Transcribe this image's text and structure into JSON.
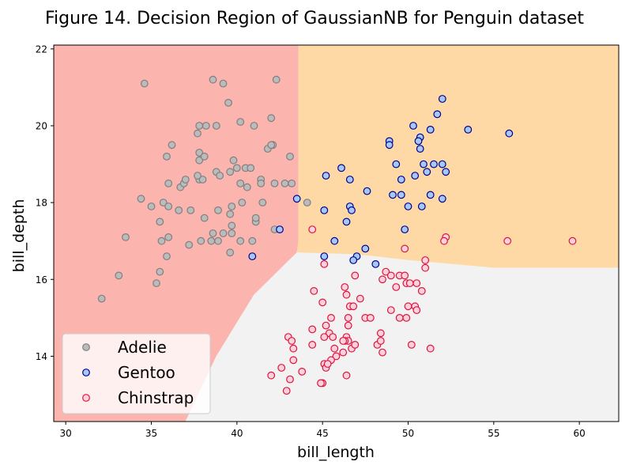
{
  "chart_data": {
    "type": "scatter",
    "title": "Figure 14. Decision Region of GaussianNB for Penguin dataset",
    "xlabel": "bill_length",
    "ylabel": "bill_depth",
    "xlim": [
      29.3,
      62.3
    ],
    "ylim": [
      12.3,
      22.1
    ],
    "xticks": [
      "30",
      "35",
      "40",
      "45",
      "50",
      "55",
      "60"
    ],
    "yticks": [
      "14",
      "16",
      "18",
      "20",
      "22"
    ],
    "legend_position": "lower-left",
    "region_colors": {
      "Adelie": "#fbb4ae",
      "Gentoo": "#fed9a6",
      "Chinstrap": "#f2f2f2"
    },
    "regions": [
      {
        "name": "Adelie",
        "polygon": [
          [
            29.3,
            12.3
          ],
          [
            29.3,
            22.1
          ],
          [
            43.6,
            22.1
          ],
          [
            43.6,
            17.0
          ],
          [
            43.5,
            16.7
          ],
          [
            41.0,
            15.6
          ],
          [
            38.8,
            14.0
          ],
          [
            37.0,
            12.3
          ]
        ]
      },
      {
        "name": "Gentoo",
        "polygon": [
          [
            43.6,
            22.1
          ],
          [
            62.3,
            22.1
          ],
          [
            62.3,
            16.3
          ],
          [
            55.0,
            16.3
          ],
          [
            50.0,
            16.5
          ],
          [
            47.0,
            16.65
          ],
          [
            43.5,
            16.7
          ],
          [
            43.6,
            17.0
          ]
        ]
      },
      {
        "name": "Chinstrap",
        "polygon": [
          [
            37.0,
            12.3
          ],
          [
            38.8,
            14.0
          ],
          [
            41.0,
            15.6
          ],
          [
            43.5,
            16.7
          ],
          [
            47.0,
            16.65
          ],
          [
            50.0,
            16.5
          ],
          [
            55.0,
            16.3
          ],
          [
            62.3,
            16.3
          ],
          [
            62.3,
            12.3
          ]
        ]
      }
    ],
    "series": [
      {
        "name": "Adelie",
        "fill": "#bbbbbb",
        "edge": "#7f7f7f",
        "points": [
          [
            34.6,
            21.1
          ],
          [
            38.6,
            21.2
          ],
          [
            39.2,
            21.1
          ],
          [
            42.3,
            21.2
          ],
          [
            39.5,
            20.6
          ],
          [
            36.2,
            19.5
          ],
          [
            37.8,
            20.0
          ],
          [
            38.2,
            20.0
          ],
          [
            38.8,
            20.0
          ],
          [
            40.2,
            20.1
          ],
          [
            41.0,
            20.0
          ],
          [
            42.0,
            20.2
          ],
          [
            37.7,
            19.8
          ],
          [
            35.9,
            19.2
          ],
          [
            37.8,
            19.3
          ],
          [
            37.8,
            19.1
          ],
          [
            38.1,
            19.2
          ],
          [
            39.8,
            19.1
          ],
          [
            41.8,
            19.4
          ],
          [
            42.1,
            19.5
          ],
          [
            42.0,
            19.5
          ],
          [
            43.1,
            19.2
          ],
          [
            36.0,
            18.5
          ],
          [
            36.7,
            18.4
          ],
          [
            36.9,
            18.5
          ],
          [
            37.0,
            18.6
          ],
          [
            37.8,
            18.6
          ],
          [
            38.0,
            18.6
          ],
          [
            38.8,
            18.8
          ],
          [
            39.0,
            18.7
          ],
          [
            39.6,
            18.8
          ],
          [
            40.0,
            18.9
          ],
          [
            40.5,
            18.9
          ],
          [
            40.8,
            18.9
          ],
          [
            41.4,
            18.6
          ],
          [
            41.4,
            18.5
          ],
          [
            42.2,
            18.5
          ],
          [
            42.8,
            18.5
          ],
          [
            43.2,
            18.5
          ],
          [
            37.7,
            18.7
          ],
          [
            40.2,
            18.5
          ],
          [
            40.6,
            18.4
          ],
          [
            34.4,
            18.1
          ],
          [
            35.0,
            17.9
          ],
          [
            35.7,
            18.0
          ],
          [
            36.0,
            17.9
          ],
          [
            36.6,
            17.8
          ],
          [
            37.3,
            17.8
          ],
          [
            38.1,
            17.6
          ],
          [
            38.9,
            17.8
          ],
          [
            39.6,
            17.7
          ],
          [
            39.7,
            17.9
          ],
          [
            40.3,
            18.0
          ],
          [
            41.1,
            17.5
          ],
          [
            41.1,
            17.6
          ],
          [
            41.5,
            18.0
          ],
          [
            44.1,
            18.0
          ],
          [
            35.5,
            17.5
          ],
          [
            38.6,
            17.2
          ],
          [
            38.9,
            17.0
          ],
          [
            39.2,
            17.2
          ],
          [
            39.7,
            17.2
          ],
          [
            40.9,
            17.0
          ],
          [
            42.2,
            17.3
          ],
          [
            38.5,
            17.0
          ],
          [
            33.5,
            17.1
          ],
          [
            35.6,
            17.0
          ],
          [
            36.0,
            17.1
          ],
          [
            37.2,
            16.9
          ],
          [
            37.9,
            17.0
          ],
          [
            40.2,
            17.0
          ],
          [
            35.9,
            16.6
          ],
          [
            39.6,
            16.7
          ],
          [
            35.5,
            16.2
          ],
          [
            33.1,
            16.1
          ],
          [
            35.3,
            15.9
          ],
          [
            32.1,
            15.5
          ],
          [
            39.7,
            17.4
          ]
        ]
      },
      {
        "name": "Gentoo",
        "fill": "#a6c8ff",
        "edge": "#00008b",
        "points": [
          [
            52.0,
            20.7
          ],
          [
            51.7,
            20.3
          ],
          [
            50.3,
            20.0
          ],
          [
            51.3,
            19.9
          ],
          [
            53.5,
            19.9
          ],
          [
            55.9,
            19.8
          ],
          [
            50.7,
            19.7
          ],
          [
            48.9,
            19.6
          ],
          [
            48.9,
            19.5
          ],
          [
            50.6,
            19.6
          ],
          [
            50.7,
            19.4
          ],
          [
            45.2,
            18.7
          ],
          [
            46.1,
            18.9
          ],
          [
            46.6,
            18.6
          ],
          [
            49.6,
            18.6
          ],
          [
            50.4,
            18.7
          ],
          [
            51.1,
            18.8
          ],
          [
            51.5,
            19.0
          ],
          [
            52.0,
            19.0
          ],
          [
            52.2,
            18.8
          ],
          [
            50.9,
            19.0
          ],
          [
            49.3,
            19.0
          ],
          [
            47.6,
            18.3
          ],
          [
            49.1,
            18.2
          ],
          [
            49.6,
            18.2
          ],
          [
            51.3,
            18.2
          ],
          [
            52.0,
            18.1
          ],
          [
            43.5,
            18.1
          ],
          [
            45.1,
            17.8
          ],
          [
            46.4,
            17.5
          ],
          [
            46.6,
            17.9
          ],
          [
            46.7,
            17.8
          ],
          [
            50.0,
            17.9
          ],
          [
            50.8,
            17.9
          ],
          [
            49.8,
            17.3
          ],
          [
            42.5,
            17.3
          ],
          [
            45.7,
            17.0
          ],
          [
            47.5,
            16.8
          ],
          [
            47.0,
            16.6
          ],
          [
            46.8,
            16.5
          ],
          [
            48.1,
            16.4
          ],
          [
            45.1,
            16.6
          ],
          [
            40.9,
            16.6
          ]
        ]
      },
      {
        "name": "Chinstrap",
        "fill": "#ffd1dc",
        "edge": "#dc143c",
        "points": [
          [
            52.2,
            17.1
          ],
          [
            52.1,
            17.0
          ],
          [
            55.8,
            17.0
          ],
          [
            59.6,
            17.0
          ],
          [
            44.4,
            17.3
          ],
          [
            49.8,
            16.8
          ],
          [
            51.0,
            16.5
          ],
          [
            51.0,
            16.3
          ],
          [
            45.1,
            16.4
          ],
          [
            46.9,
            16.1
          ],
          [
            48.5,
            16.0
          ],
          [
            48.7,
            16.2
          ],
          [
            49.0,
            16.1
          ],
          [
            49.5,
            16.1
          ],
          [
            49.8,
            16.1
          ],
          [
            49.9,
            15.9
          ],
          [
            50.1,
            15.9
          ],
          [
            50.5,
            15.9
          ],
          [
            49.3,
            15.8
          ],
          [
            50.8,
            15.7
          ],
          [
            46.3,
            15.8
          ],
          [
            46.4,
            15.6
          ],
          [
            44.5,
            15.7
          ],
          [
            46.6,
            15.3
          ],
          [
            47.2,
            15.5
          ],
          [
            45.0,
            15.4
          ],
          [
            50.0,
            15.3
          ],
          [
            50.4,
            15.3
          ],
          [
            50.5,
            15.2
          ],
          [
            49.0,
            15.2
          ],
          [
            46.5,
            15.0
          ],
          [
            47.5,
            15.0
          ],
          [
            47.8,
            15.0
          ],
          [
            49.5,
            15.0
          ],
          [
            49.9,
            15.0
          ],
          [
            45.5,
            15.0
          ],
          [
            44.4,
            14.7
          ],
          [
            45.2,
            14.8
          ],
          [
            46.5,
            14.8
          ],
          [
            45.4,
            14.6
          ],
          [
            45.6,
            14.5
          ],
          [
            45.1,
            14.5
          ],
          [
            46.4,
            14.5
          ],
          [
            46.5,
            14.4
          ],
          [
            48.4,
            14.6
          ],
          [
            43.0,
            14.5
          ],
          [
            43.2,
            14.4
          ],
          [
            46.3,
            14.4
          ],
          [
            48.2,
            14.3
          ],
          [
            48.4,
            14.4
          ],
          [
            50.2,
            14.3
          ],
          [
            51.3,
            14.2
          ],
          [
            43.3,
            14.2
          ],
          [
            44.4,
            14.3
          ],
          [
            45.7,
            14.2
          ],
          [
            46.7,
            14.2
          ],
          [
            46.9,
            14.3
          ],
          [
            45.8,
            14.0
          ],
          [
            48.5,
            14.1
          ],
          [
            43.3,
            13.9
          ],
          [
            45.5,
            13.9
          ],
          [
            45.1,
            13.8
          ],
          [
            45.2,
            13.7
          ],
          [
            42.6,
            13.7
          ],
          [
            43.8,
            13.6
          ],
          [
            42.0,
            13.5
          ],
          [
            46.4,
            13.5
          ],
          [
            43.1,
            13.4
          ],
          [
            45.0,
            13.3
          ],
          [
            42.9,
            13.1
          ],
          [
            46.2,
            14.4
          ],
          [
            46.2,
            14.1
          ],
          [
            46.8,
            15.3
          ],
          [
            45.3,
            13.8
          ],
          [
            44.9,
            13.3
          ]
        ]
      }
    ]
  }
}
